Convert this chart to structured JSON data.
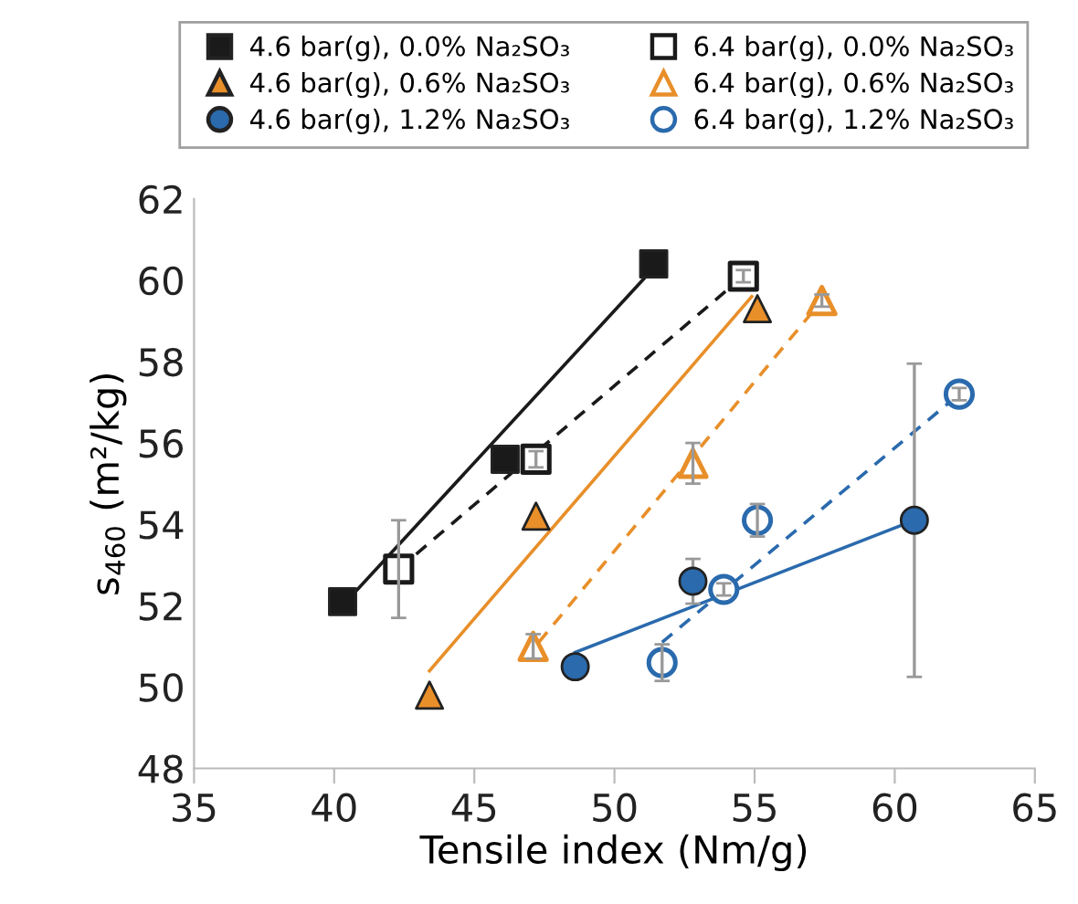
{
  "chart_data": {
    "type": "scatter",
    "xlabel": "Tensile index (Nm/g)",
    "ylabel": "s$_{460}$ (m²/kg)",
    "xlim": [
      35,
      65
    ],
    "xticks": [
      35,
      40,
      45,
      50,
      55,
      60,
      65
    ],
    "ylim": [
      48,
      62
    ],
    "yticks": [
      48,
      50,
      52,
      54,
      56,
      58,
      60,
      62
    ],
    "grid": false,
    "legend": "top",
    "series": [
      {
        "name": "4.6 bar(g), 0.0% Na₂SO₃",
        "color": "#1a1a1a",
        "marker": "square",
        "x": [
          40.3,
          46.1,
          51.4
        ],
        "values": [
          52.1,
          55.6,
          60.4
        ],
        "errors": [
          null,
          0.3,
          null
        ]
      },
      {
        "name": "6.4 bar(g), 0.0% Na₂SO₃",
        "color": "#1a1a1a",
        "marker": "square",
        "x": [
          42.3,
          47.2,
          54.6
        ],
        "values": [
          52.9,
          55.6,
          60.1
        ],
        "errors": [
          1.2,
          0.2,
          0.15
        ]
      },
      {
        "name": "4.6 bar(g), 0.6% Na₂SO₃",
        "color": "#e88f2a",
        "marker": "triangle",
        "x": [
          43.4,
          47.2,
          55.1
        ],
        "values": [
          49.8,
          54.2,
          59.3
        ]
      },
      {
        "name": "6.4 bar(g), 0.6% Na₂SO₃",
        "color": "#e88f2a",
        "marker": "triangle",
        "x": [
          47.1,
          52.8,
          57.4
        ],
        "values": [
          51.0,
          55.5,
          59.5
        ],
        "errors": [
          0.3,
          0.5,
          0.15
        ]
      },
      {
        "name": "4.6 bar(g), 1.2% Na₂SO₃",
        "color": "#2a6aad",
        "marker": "circle",
        "x": [
          48.6,
          52.8,
          60.7
        ],
        "values": [
          50.5,
          52.6,
          54.1
        ],
        "errors": [
          0.2,
          0.55,
          3.85
        ]
      },
      {
        "name": "6.4 bar(g), 1.2% Na₂SO₃",
        "color": "#2a6aad",
        "marker": "circle",
        "x": [
          51.7,
          53.9,
          55.1,
          62.3
        ],
        "values": [
          50.6,
          52.4,
          54.1,
          57.2
        ],
        "errors": [
          0.45,
          0.15,
          0.4,
          0.15
        ]
      },
      {
        "type": "line",
        "color": "#1a1a1a",
        "line_style": "solid",
        "x": [
          40.3,
          51.4
        ],
        "values": [
          52.0,
          60.3
        ]
      },
      {
        "type": "line",
        "color": "#1a1a1a",
        "line_style": "dashed",
        "x": [
          42.3,
          54.6
        ],
        "values": [
          52.9,
          60.1
        ]
      },
      {
        "type": "line",
        "color": "#e88f2a",
        "line_style": "solid",
        "x": [
          43.4,
          54.9
        ],
        "values": [
          50.4,
          59.6
        ]
      },
      {
        "type": "line",
        "color": "#e88f2a",
        "line_style": "dashed",
        "x": [
          47.3,
          57.4
        ],
        "values": [
          51.1,
          59.5
        ]
      },
      {
        "type": "line",
        "color": "#2a6aad",
        "line_style": "solid",
        "x": [
          48.6,
          60.7
        ],
        "values": [
          50.85,
          54.1
        ]
      },
      {
        "type": "line",
        "color": "#2a6aad",
        "line_style": "dashed",
        "x": [
          51.7,
          62.3
        ],
        "values": [
          51.1,
          57.2
        ]
      }
    ]
  }
}
